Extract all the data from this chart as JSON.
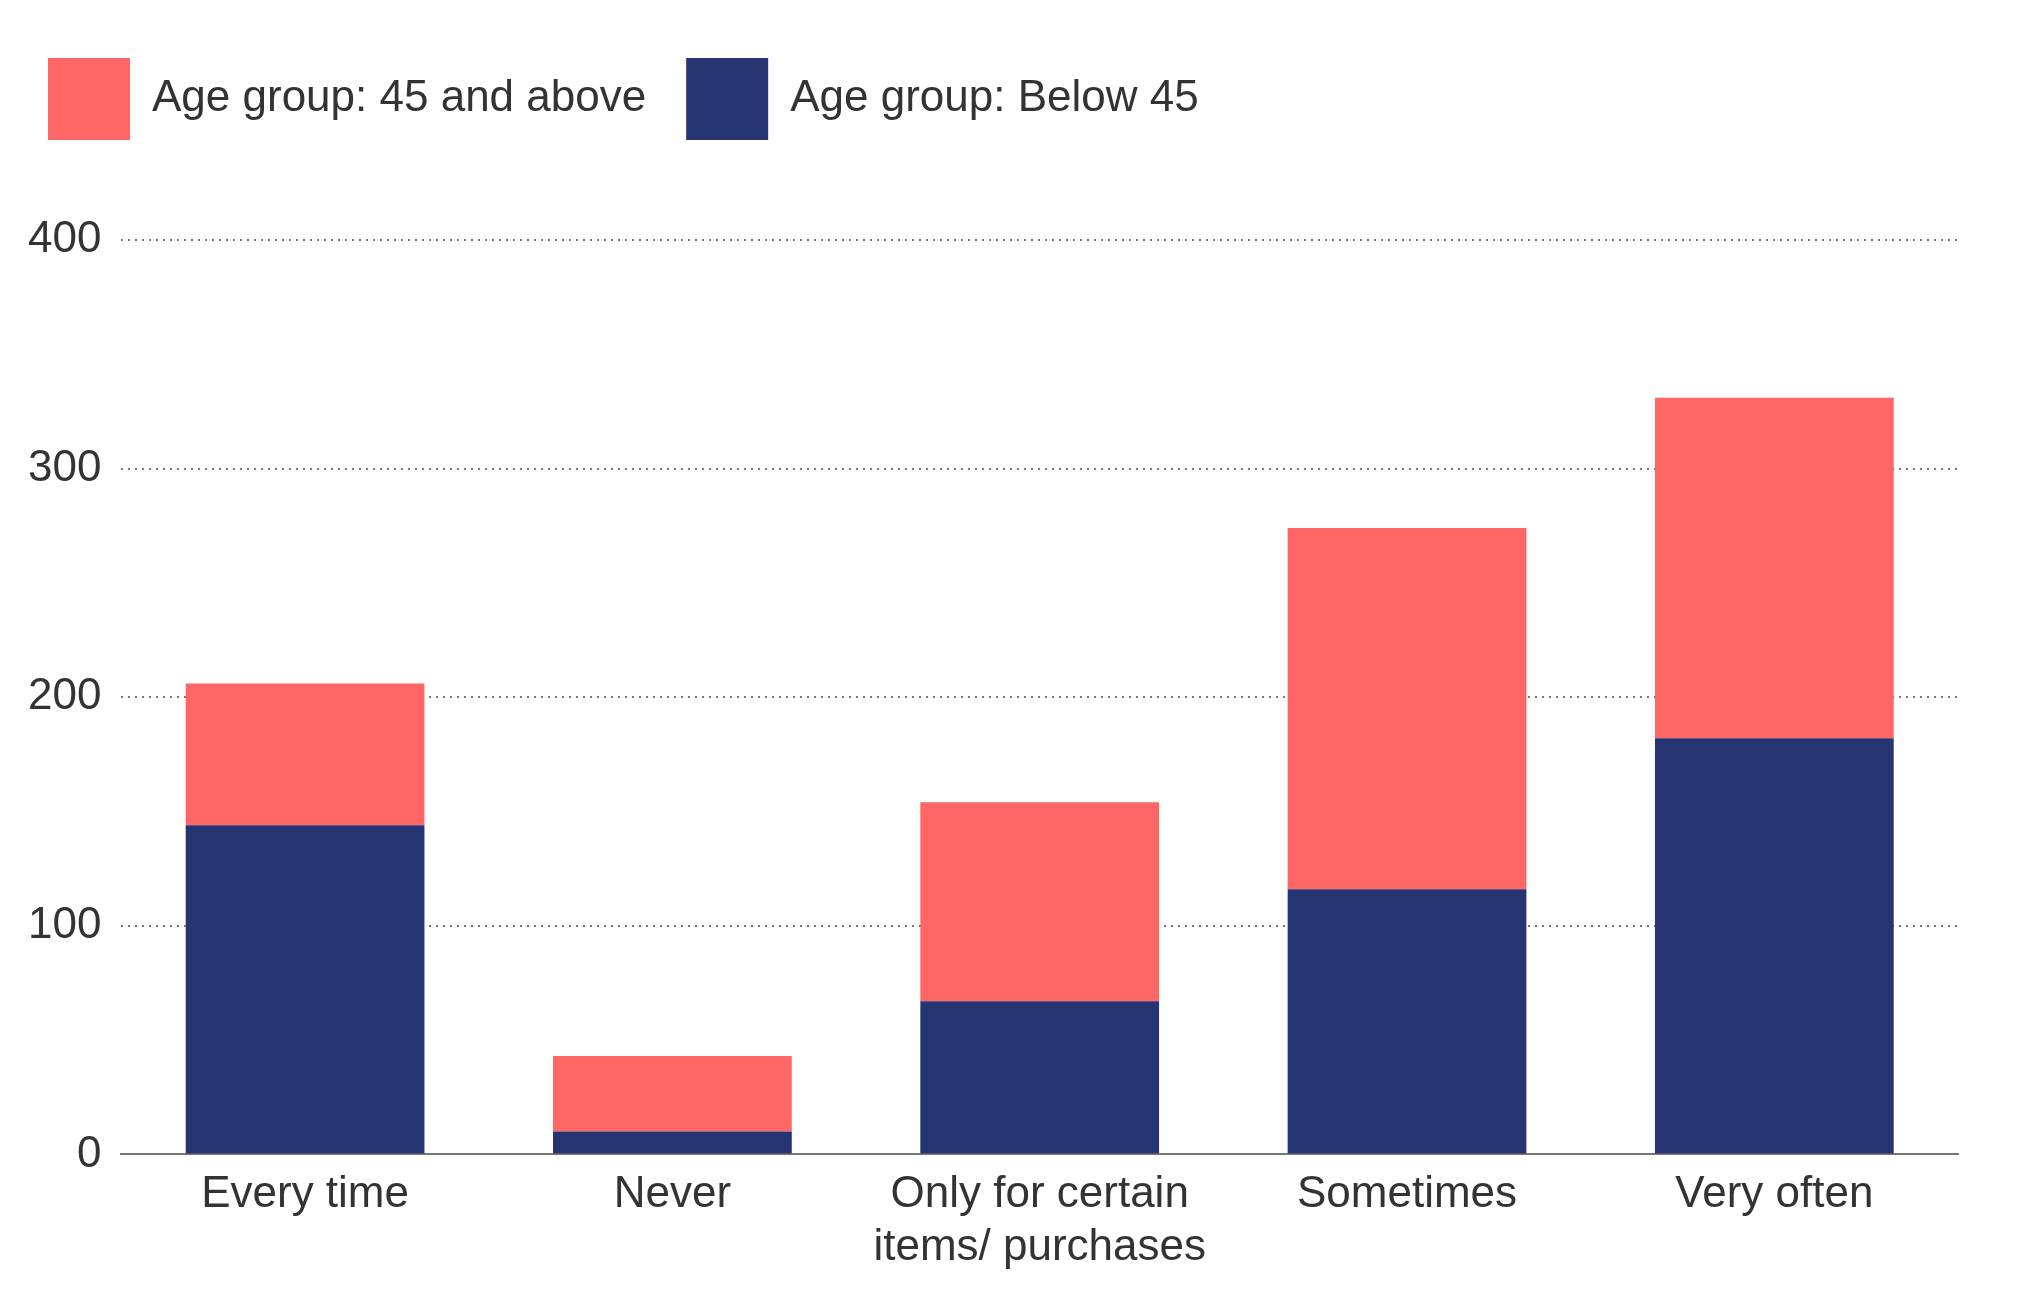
{
  "chart_data": {
    "type": "bar",
    "stacked": true,
    "categories": [
      "Every time",
      "Never",
      "Only for certain items/ purchases",
      "Sometimes",
      "Very often"
    ],
    "series": [
      {
        "name": "Age group: Below 45",
        "color": "#263571",
        "values": [
          144,
          10,
          67,
          116,
          182
        ]
      },
      {
        "name": "Age group: 45 and above",
        "color": "#ff6666",
        "values": [
          62,
          33,
          87,
          158,
          149
        ]
      }
    ],
    "ylim": [
      0,
      400
    ],
    "yticks": [
      0,
      100,
      200,
      300,
      400
    ],
    "grid": "y",
    "legend": "top left"
  }
}
